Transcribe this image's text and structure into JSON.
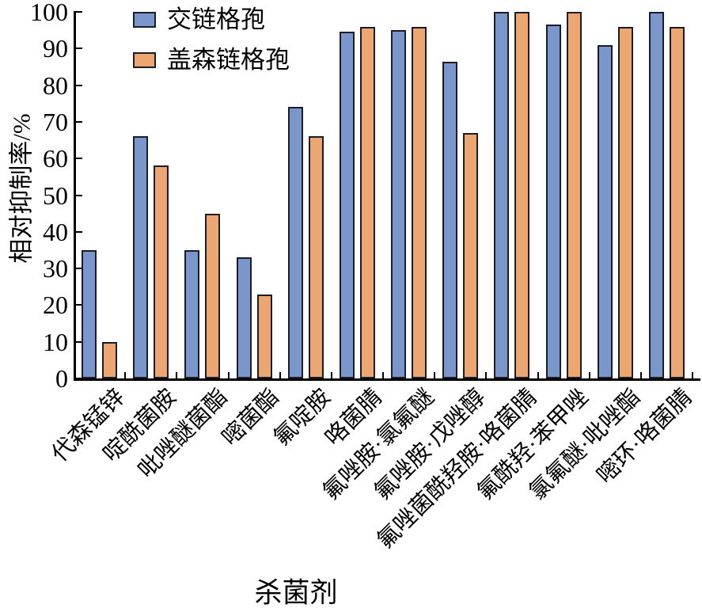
{
  "figure": {
    "background": "#ffffff"
  },
  "chart_data": {
    "type": "bar",
    "title": "",
    "xlabel": "杀菌剂",
    "ylabel": "相对抑制率/%",
    "ylim": [
      0,
      100
    ],
    "ytick_step": 10,
    "ytick_labels": [
      "0",
      "10",
      "20",
      "30",
      "40",
      "50",
      "60",
      "70",
      "80",
      "90",
      "100"
    ],
    "grid": false,
    "legend_position": "top-left-inside",
    "categories": [
      "代森锰锌",
      "啶酰菌胺",
      "吡唑醚菌酯",
      "嘧菌酯",
      "氟啶胺",
      "咯菌腈",
      "氟唑胺·氯氟醚",
      "氟唑胺·戊唑醇",
      "氟唑菌酰羟胺·咯菌腈",
      "氟酰羟·苯甲唑",
      "氯氟醚·吡唑酯",
      "嘧环·咯菌腈"
    ],
    "series": [
      {
        "name": "交链格孢",
        "color": "#7B96CB",
        "values": [
          35,
          66,
          35,
          33,
          74,
          94.5,
          95,
          86.5,
          100,
          96.5,
          91,
          100
        ]
      },
      {
        "name": "盖森链格孢",
        "color": "#ECA672",
        "values": [
          10,
          58,
          45,
          23,
          66,
          96,
          96,
          67,
          100,
          100,
          96,
          96
        ]
      }
    ],
    "bar_border_color": "#1C1C26",
    "axis_color": "#000000"
  }
}
